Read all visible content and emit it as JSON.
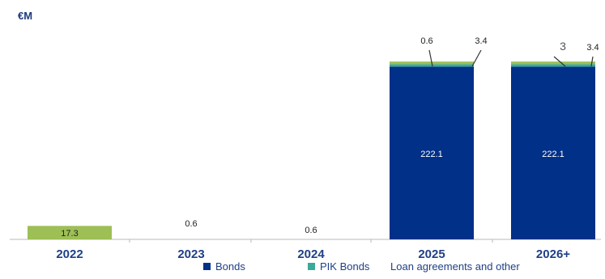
{
  "unit_label": "€M",
  "chart_data": {
    "type": "bar",
    "stacked": true,
    "categories": [
      "2022",
      "2023",
      "2024",
      "2025",
      "2026+"
    ],
    "series": [
      {
        "name": "Bonds",
        "values": [
          0,
          0,
          0,
          222.1,
          222.1
        ]
      },
      {
        "name": "PIK Bonds",
        "values": [
          0,
          0,
          0,
          0.6,
          3
        ]
      },
      {
        "name": "Loan agreements and other",
        "values": [
          17.3,
          0.6,
          0.6,
          3.4,
          3.4
        ]
      }
    ],
    "data_labels": [
      [
        "",
        "",
        "",
        "222.1",
        "222.1"
      ],
      [
        "",
        "",
        "",
        "0.6",
        "3"
      ],
      [
        "17.3",
        "0.6",
        "0.6",
        "3.4",
        "3.4"
      ]
    ],
    "ylim": [
      0,
      235
    ],
    "grid": false,
    "legend_position": "bottom",
    "colors": [
      "#003087",
      "#3aaa99",
      "#9dbf55"
    ]
  }
}
